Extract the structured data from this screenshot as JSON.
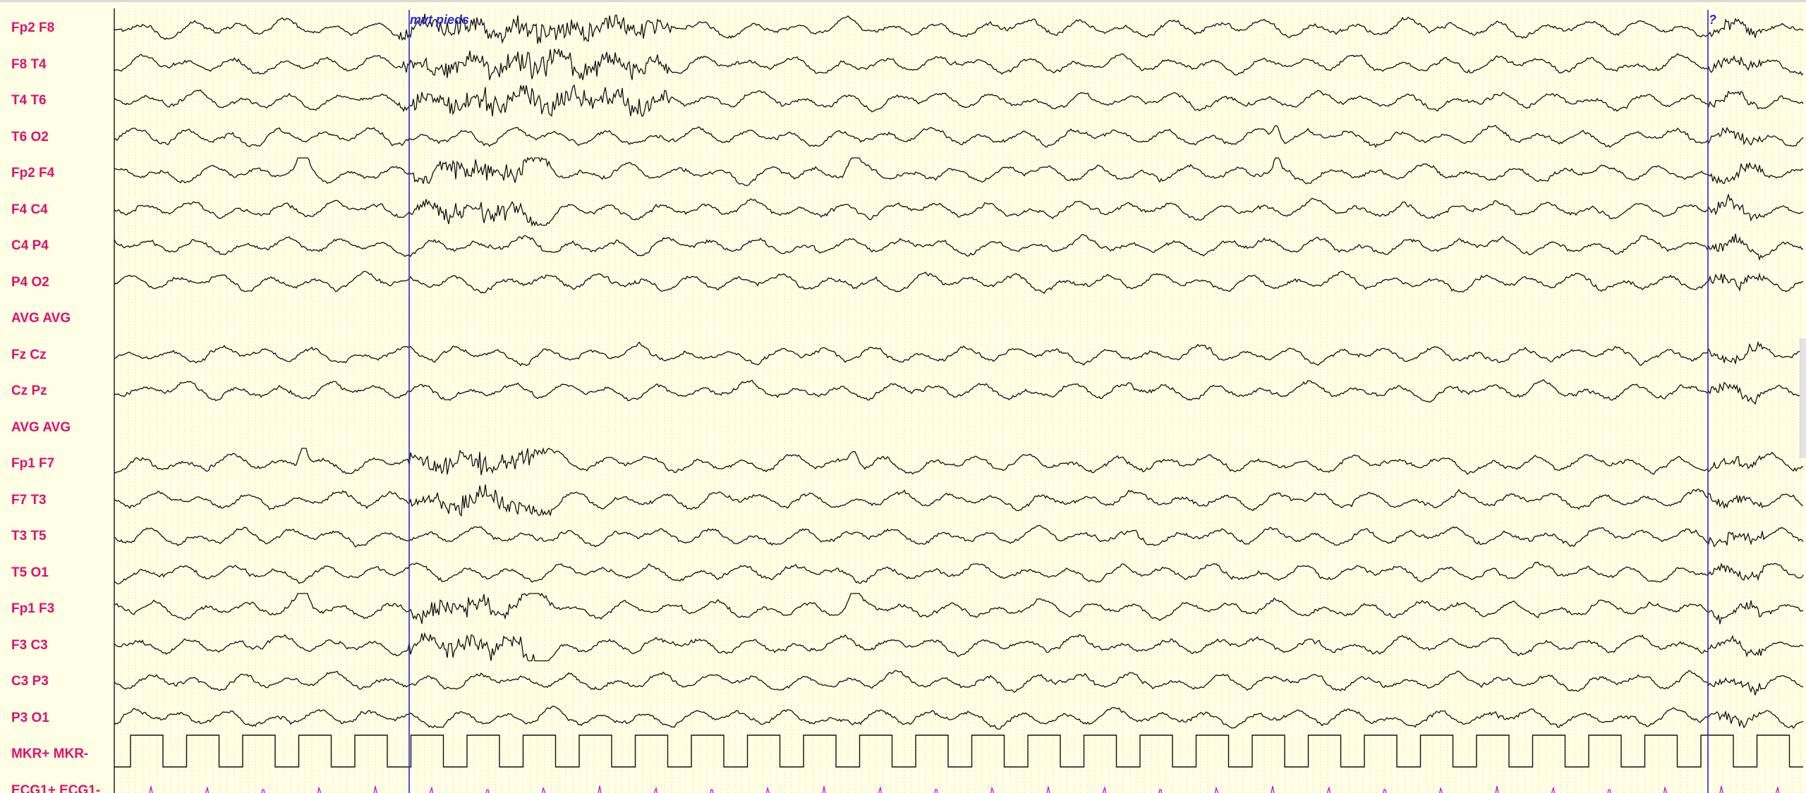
{
  "viewer": {
    "colors": {
      "background": "#ffffe5",
      "label": "#e0106c",
      "trace": "#101010",
      "grid": "#cfd6a6",
      "marker": "#2a2ad8",
      "ecg": "#e000e0"
    },
    "channels": [
      {
        "label": "Fp2 F8",
        "kind": "eeg"
      },
      {
        "label": "F8 T4",
        "kind": "eeg"
      },
      {
        "label": "T4 T6",
        "kind": "eeg"
      },
      {
        "label": "T6 O2",
        "kind": "eeg"
      },
      {
        "label": "Fp2 F4",
        "kind": "eeg"
      },
      {
        "label": "F4 C4",
        "kind": "eeg"
      },
      {
        "label": "C4 P4",
        "kind": "eeg"
      },
      {
        "label": "P4 O2",
        "kind": "eeg"
      },
      {
        "label": "AVG AVG",
        "kind": "flat"
      },
      {
        "label": "Fz Cz",
        "kind": "eeg"
      },
      {
        "label": "Cz Pz",
        "kind": "eeg"
      },
      {
        "label": "AVG AVG",
        "kind": "flat"
      },
      {
        "label": "Fp1 F7",
        "kind": "eeg"
      },
      {
        "label": "F7 T3",
        "kind": "eeg"
      },
      {
        "label": "T3 T5",
        "kind": "eeg"
      },
      {
        "label": "T5 O1",
        "kind": "eeg"
      },
      {
        "label": "Fp1 F3",
        "kind": "eeg"
      },
      {
        "label": "F3 C3",
        "kind": "eeg"
      },
      {
        "label": "C3 P3",
        "kind": "eeg"
      },
      {
        "label": "P3 O1",
        "kind": "eeg"
      },
      {
        "label": "MKR+ MKR-",
        "kind": "square"
      },
      {
        "label": "ECG1+ ECG1-",
        "kind": "ecg"
      }
    ],
    "markers": [
      {
        "label": "mvt pieds"
      },
      {
        "label": "?"
      }
    ]
  }
}
